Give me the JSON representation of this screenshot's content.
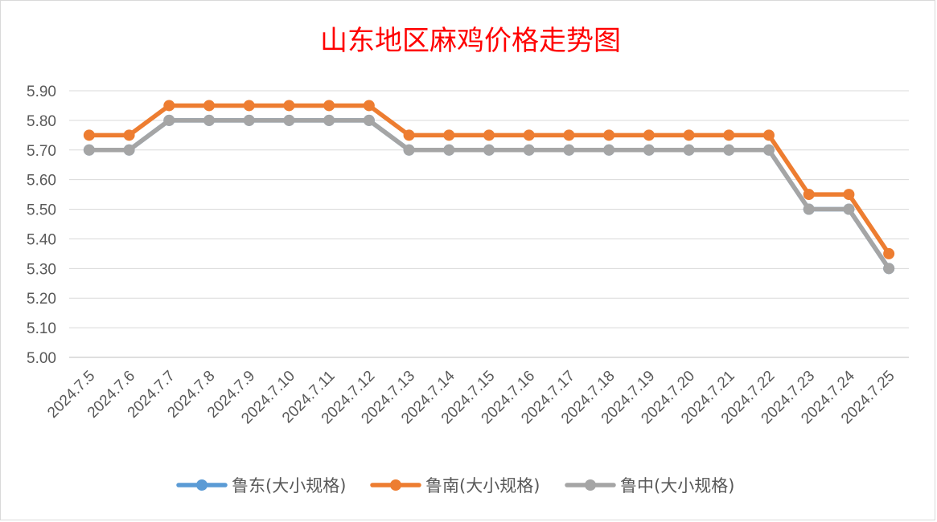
{
  "chart_data": {
    "type": "line",
    "title": "山东地区麻鸡价格走势图",
    "xlabel": "",
    "ylabel": "",
    "ylim": [
      5.0,
      5.9
    ],
    "yticks": [
      "5.00",
      "5.10",
      "5.20",
      "5.30",
      "5.40",
      "5.50",
      "5.60",
      "5.70",
      "5.80",
      "5.90"
    ],
    "categories": [
      "2024.7.5",
      "2024.7.6",
      "2024.7.7",
      "2024.7.8",
      "2024.7.9",
      "2024.7.10",
      "2024.7.11",
      "2024.7.12",
      "2024.7.13",
      "2024.7.14",
      "2024.7.15",
      "2024.7.16",
      "2024.7.17",
      "2024.7.18",
      "2024.7.19",
      "2024.7.20",
      "2024.7.21",
      "2024.7.22",
      "2024.7.23",
      "2024.7.24",
      "2024.7.25"
    ],
    "grid": true,
    "legend_position": "bottom",
    "series": [
      {
        "name": "鲁东(大小规格)",
        "color": "#5b9bd5",
        "values": [
          5.7,
          5.7,
          5.8,
          5.8,
          5.8,
          5.8,
          5.8,
          5.8,
          5.7,
          5.7,
          5.7,
          5.7,
          5.7,
          5.7,
          5.7,
          5.7,
          5.7,
          5.7,
          5.5,
          5.5,
          5.3
        ]
      },
      {
        "name": "鲁南(大小规格)",
        "color": "#ed7d31",
        "values": [
          5.75,
          5.75,
          5.85,
          5.85,
          5.85,
          5.85,
          5.85,
          5.85,
          5.75,
          5.75,
          5.75,
          5.75,
          5.75,
          5.75,
          5.75,
          5.75,
          5.75,
          5.75,
          5.55,
          5.55,
          5.35
        ]
      },
      {
        "name": "鲁中(大小规格)",
        "color": "#a5a5a5",
        "values": [
          5.7,
          5.7,
          5.8,
          5.8,
          5.8,
          5.8,
          5.8,
          5.8,
          5.7,
          5.7,
          5.7,
          5.7,
          5.7,
          5.7,
          5.7,
          5.7,
          5.7,
          5.7,
          5.5,
          5.5,
          5.3
        ]
      }
    ]
  }
}
